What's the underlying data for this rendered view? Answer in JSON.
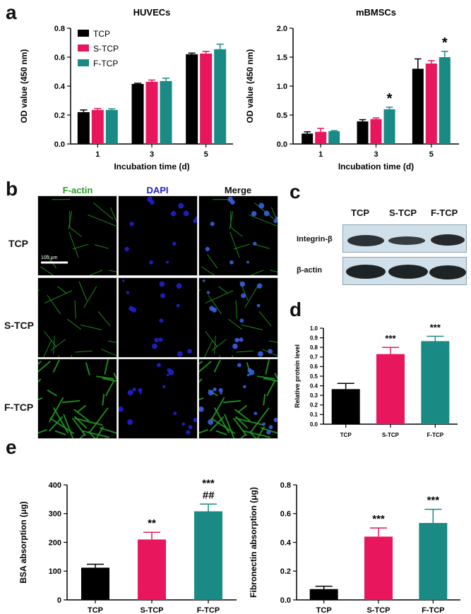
{
  "panels": {
    "a": "a",
    "b": "b",
    "c": "c",
    "d": "d",
    "e": "e"
  },
  "colors": {
    "tcp": "#000000",
    "stcp": "#e8175d",
    "ftcp": "#1a8a85",
    "factin": "#23a023",
    "dapi": "#2020d0"
  },
  "chart_data": [
    {
      "id": "huvec",
      "type": "bar",
      "title": "HUVECs",
      "xlabel": "Incubation time (d)",
      "ylabel": "OD value (450 nm)",
      "categories": [
        "1",
        "3",
        "5"
      ],
      "ylim": [
        0,
        0.8
      ],
      "yticks": [
        "0.0",
        "0.2",
        "0.4",
        "0.6",
        "0.8"
      ],
      "legend": "top-left",
      "series": [
        {
          "name": "TCP",
          "values": [
            0.22,
            0.415,
            0.62
          ],
          "err": [
            0.015,
            0.005,
            0.008
          ]
        },
        {
          "name": "S-TCP",
          "values": [
            0.235,
            0.43,
            0.625
          ],
          "err": [
            0.01,
            0.012,
            0.015
          ]
        },
        {
          "name": "F-TCP",
          "values": [
            0.235,
            0.435,
            0.655
          ],
          "err": [
            0.008,
            0.02,
            0.035
          ]
        }
      ],
      "annotations": []
    },
    {
      "id": "mbmsc",
      "type": "bar",
      "title": "mBMSCs",
      "xlabel": "Incubation time (d)",
      "ylabel": "OD value (450 nm)",
      "categories": [
        "1",
        "3",
        "5"
      ],
      "ylim": [
        0,
        2.0
      ],
      "yticks": [
        "0.0",
        "0.5",
        "1.0",
        "1.5",
        "2.0"
      ],
      "series": [
        {
          "name": "TCP",
          "values": [
            0.18,
            0.39,
            1.3
          ],
          "err": [
            0.03,
            0.03,
            0.17
          ]
        },
        {
          "name": "S-TCP",
          "values": [
            0.21,
            0.43,
            1.39
          ],
          "err": [
            0.06,
            0.02,
            0.05
          ]
        },
        {
          "name": "F-TCP",
          "values": [
            0.22,
            0.6,
            1.5
          ],
          "err": [
            0.01,
            0.035,
            0.1
          ]
        }
      ],
      "annotations": [
        {
          "category": 1,
          "series": 2,
          "text": "*"
        },
        {
          "category": 2,
          "series": 2,
          "text": "*"
        }
      ]
    },
    {
      "id": "wb",
      "type": "bar",
      "title": "",
      "xlabel": "",
      "ylabel": "Relative protein level",
      "categories": [
        "TCP",
        "S-TCP",
        "F-TCP"
      ],
      "ylim": [
        0,
        1.0
      ],
      "yticks": [
        "0.0",
        "0.1",
        "0.2",
        "0.3",
        "0.4",
        "0.5",
        "0.6",
        "0.7",
        "0.8",
        "0.9",
        "1.0"
      ],
      "series": [
        {
          "values": [
            0.365,
            0.73,
            0.865
          ],
          "err": [
            0.06,
            0.07,
            0.05
          ]
        }
      ],
      "annotations": [
        {
          "category": 1,
          "text": "***"
        },
        {
          "category": 2,
          "text": "***"
        }
      ]
    },
    {
      "id": "bsa",
      "type": "bar",
      "title": "",
      "xlabel": "",
      "ylabel": "BSA absorption (μg)",
      "categories": [
        "TCP",
        "S-TCP",
        "F-TCP"
      ],
      "ylim": [
        0,
        400
      ],
      "yticks": [
        "0",
        "100",
        "200",
        "300",
        "400"
      ],
      "series": [
        {
          "values": [
            112,
            210,
            308
          ],
          "err": [
            12,
            25,
            25
          ]
        }
      ],
      "annotations": [
        {
          "category": 1,
          "text": "**"
        },
        {
          "category": 2,
          "text": "***"
        },
        {
          "category": 2,
          "text": "##"
        }
      ]
    },
    {
      "id": "fn",
      "type": "bar",
      "title": "",
      "xlabel": "",
      "ylabel": "Fibronectin absorption (μg)",
      "categories": [
        "TCP",
        "S-TCP",
        "F-TCP"
      ],
      "ylim": [
        0,
        0.8
      ],
      "yticks": [
        "0.0",
        "0.2",
        "0.4",
        "0.6",
        "0.8"
      ],
      "series": [
        {
          "values": [
            0.075,
            0.44,
            0.535
          ],
          "err": [
            0.02,
            0.06,
            0.095
          ]
        }
      ],
      "annotations": [
        {
          "category": 1,
          "text": "***"
        },
        {
          "category": 2,
          "text": "***"
        }
      ]
    }
  ],
  "micrographs": {
    "columns": [
      "F-actin",
      "DAPI",
      "Merge"
    ],
    "rows": [
      "TCP",
      "S-TCP",
      "F-TCP"
    ],
    "scale_bar": "100 μm"
  },
  "western": {
    "headers": [
      "TCP",
      "S-TCP",
      "F-TCP"
    ],
    "bands": [
      "Integrin-β",
      "β-actin"
    ]
  }
}
